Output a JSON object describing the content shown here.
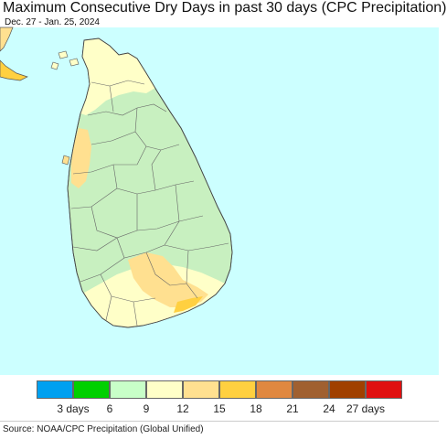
{
  "title": "Maximum Consecutive Dry Days in past 30 days (CPC Precipitation)",
  "date_range": "Dec. 27 - Jan. 25, 2024",
  "legend": {
    "colors": [
      "#00a0f0",
      "#00d000",
      "#c8ffc8",
      "#ffffc8",
      "#ffe090",
      "#ffd040",
      "#e08840",
      "#a06030",
      "#a04000",
      "#e01010"
    ],
    "ticks": [
      "3 days",
      "6",
      "9",
      "12",
      "15",
      "18",
      "21",
      "24",
      "27 days"
    ]
  },
  "source": "Source: NOAA/CPC Precipitation (Global Unified)",
  "colors": {
    "ocean": "#ccffff",
    "light_green": "#c8f0c0",
    "pale_yellow": "#ffffc8",
    "tan": "#ffe090",
    "orange": "#ffd040",
    "boundary": "#555555"
  }
}
